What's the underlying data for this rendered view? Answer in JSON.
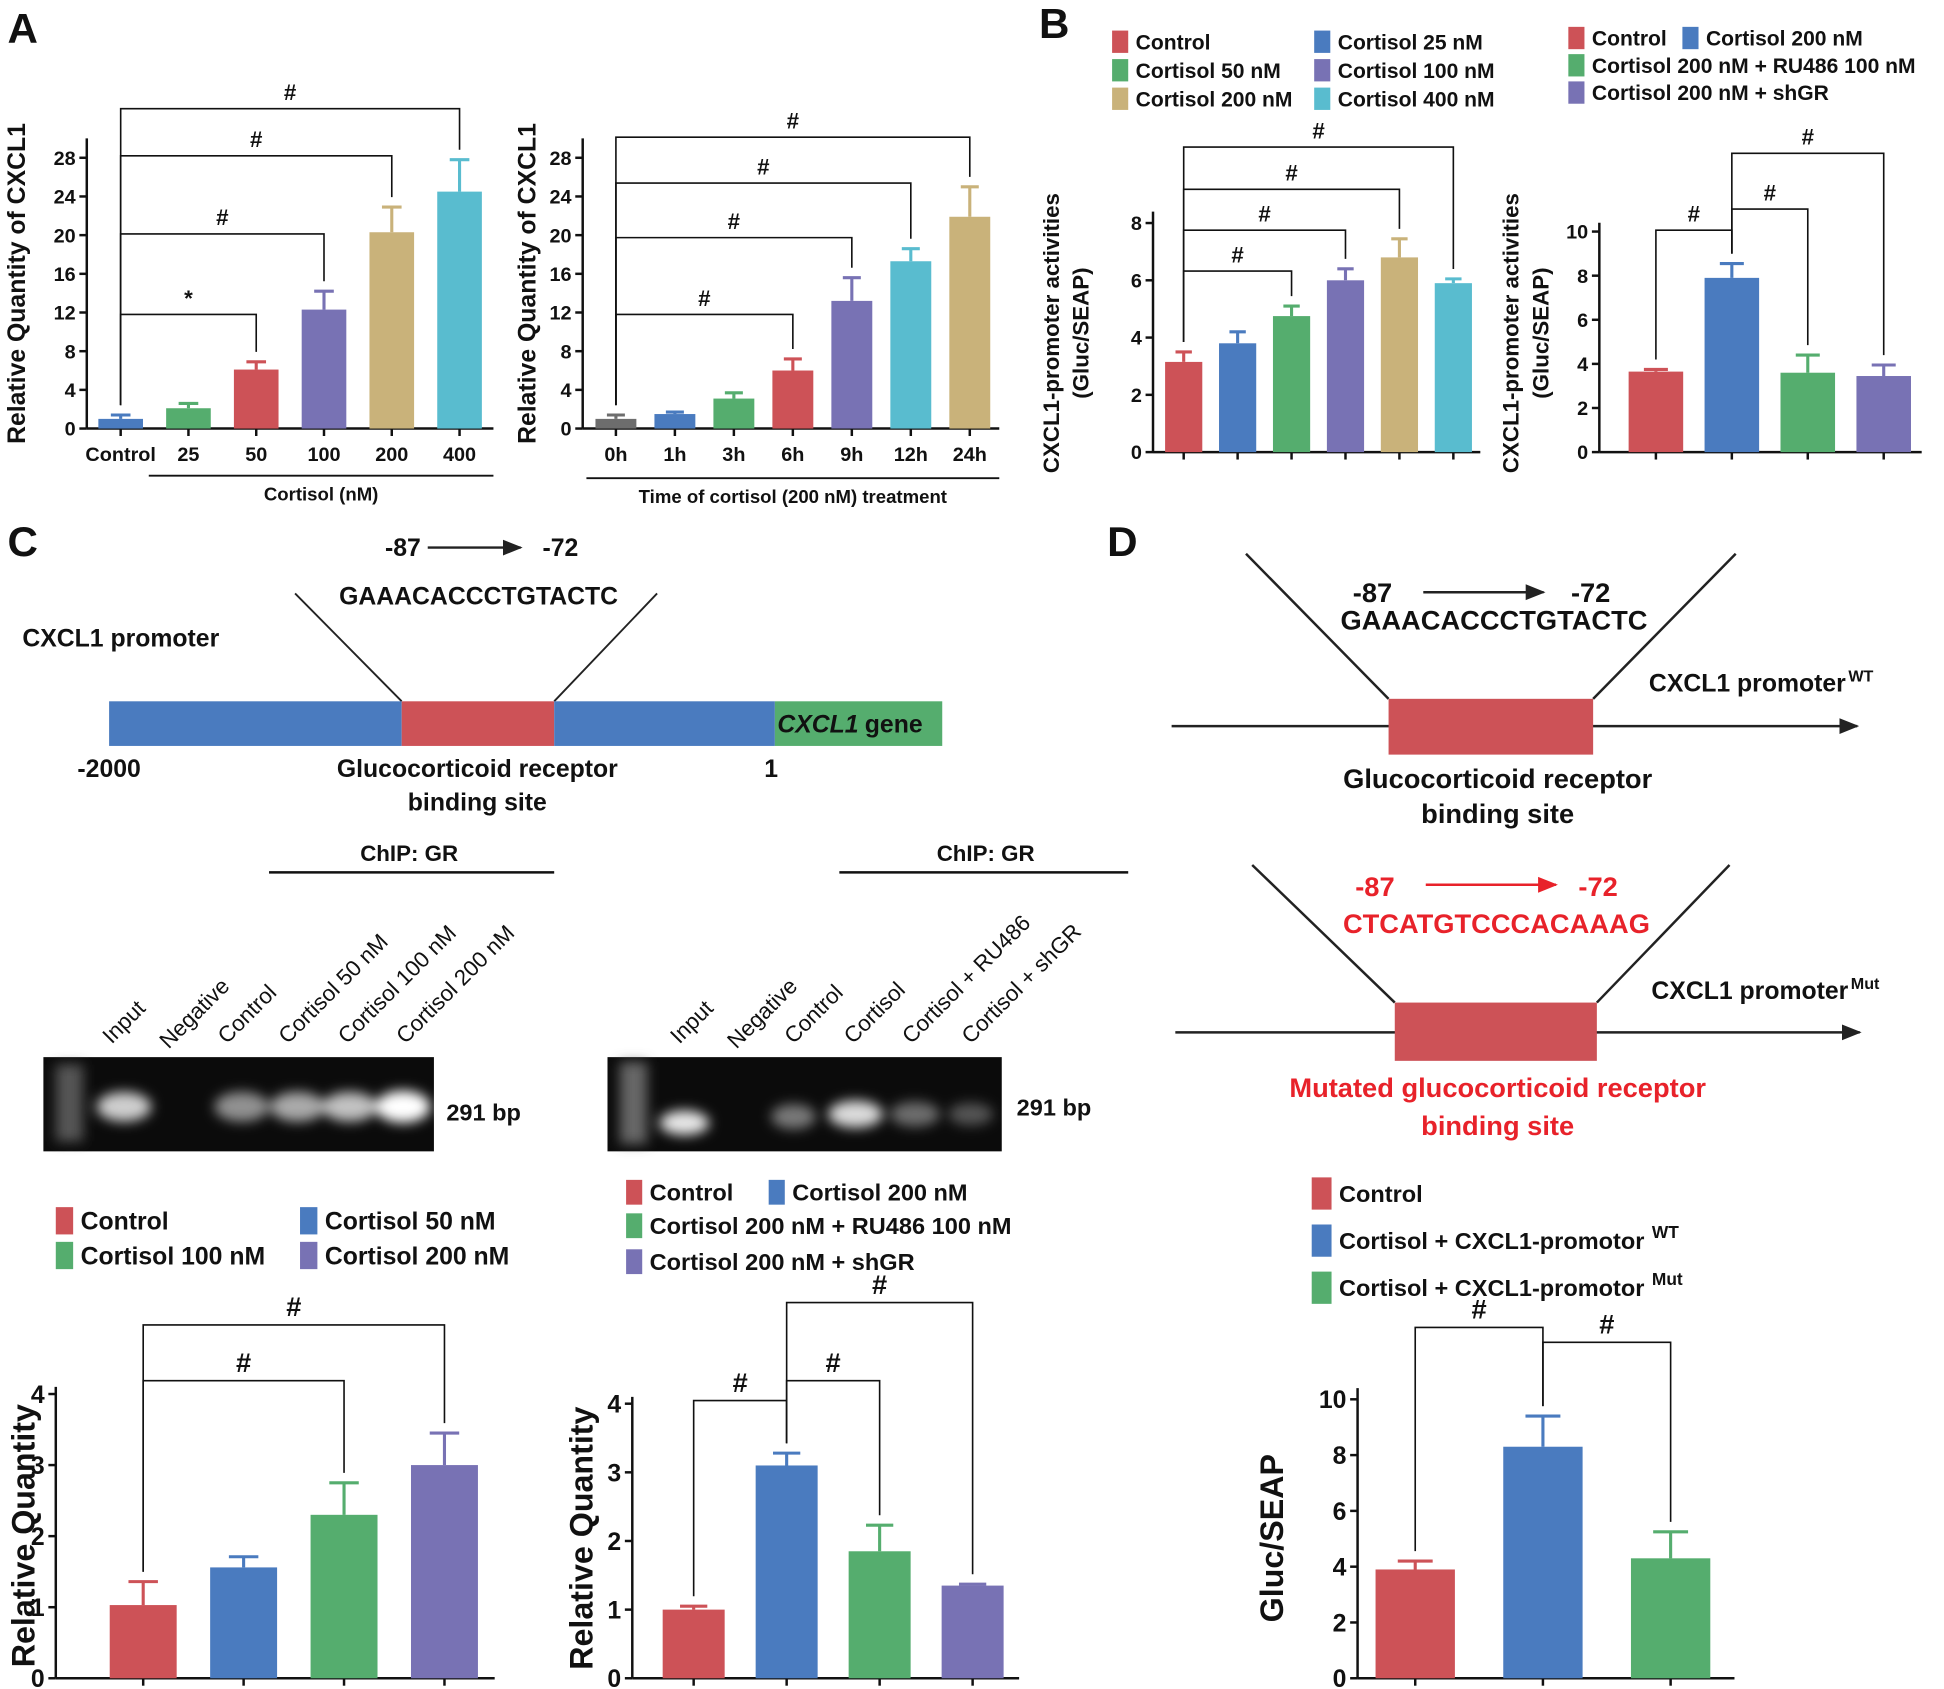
{
  "panels": {
    "labels": [
      "A",
      "B",
      "C",
      "D"
    ]
  },
  "chart_data": [
    {
      "type": "bar",
      "ylabel": "Relative Quantity of CXCL1",
      "xlabel": "Cortisol (nM)",
      "categories": [
        "Control",
        "25",
        "50",
        "100",
        "200",
        "400"
      ],
      "values": [
        1.0,
        2.1,
        6.1,
        12.3,
        20.3,
        24.5
      ],
      "errors": [
        0.4,
        0.5,
        0.8,
        1.9,
        2.6,
        3.3
      ],
      "colors": [
        "#4a7bbf",
        "#55ad6e",
        "#cd5257",
        "#7872b4",
        "#c9b27a",
        "#59bccf"
      ],
      "ylim": [
        0,
        30
      ],
      "yticks": [
        0,
        4,
        8,
        12,
        16,
        20,
        24,
        28
      ],
      "significance": [
        {
          "from": 0,
          "to": 2,
          "label": "*"
        },
        {
          "from": 0,
          "to": 3,
          "label": "#"
        },
        {
          "from": 0,
          "to": 4,
          "label": "#"
        },
        {
          "from": 0,
          "to": 5,
          "label": "#"
        }
      ]
    },
    {
      "type": "bar",
      "ylabel": "Relative Quantity of CXCL1",
      "xlabel": "Time of cortisol (200 nM) treatment",
      "categories": [
        "0h",
        "1h",
        "3h",
        "6h",
        "9h",
        "12h",
        "24h"
      ],
      "values": [
        1.0,
        1.5,
        3.1,
        6.0,
        13.2,
        17.3,
        21.9
      ],
      "errors": [
        0.4,
        0.2,
        0.6,
        1.2,
        2.4,
        1.3,
        3.1
      ],
      "colors": [
        "#6d6d6d",
        "#4a7bbf",
        "#55ad6e",
        "#cd5257",
        "#7872b4",
        "#59bccf",
        "#c9b27a"
      ],
      "ylim": [
        0,
        30
      ],
      "yticks": [
        0,
        4,
        8,
        12,
        16,
        20,
        24,
        28
      ],
      "significance": [
        {
          "from": 0,
          "to": 3,
          "label": "#"
        },
        {
          "from": 0,
          "to": 4,
          "label": "#"
        },
        {
          "from": 0,
          "to": 5,
          "label": "#"
        },
        {
          "from": 0,
          "to": 6,
          "label": "#"
        }
      ]
    },
    {
      "type": "bar",
      "ylabel": [
        "CXCL1-promoter activities",
        "(Gluc/SEAP)"
      ],
      "series": [
        {
          "name": "Control",
          "color": "#cd5257",
          "values": [
            3.15
          ],
          "errors": [
            0.35
          ]
        },
        {
          "name": "Cortisol 25 nM",
          "color": "#4a7bbf",
          "values": [
            3.8
          ],
          "errors": [
            0.4
          ]
        },
        {
          "name": "Cortisol 50 nM",
          "color": "#55ad6e",
          "values": [
            4.75
          ],
          "errors": [
            0.35
          ]
        },
        {
          "name": "Cortisol 100 nM",
          "color": "#7872b4",
          "values": [
            6.0
          ],
          "errors": [
            0.4
          ]
        },
        {
          "name": "Cortisol 200 nM",
          "color": "#c9b27a",
          "values": [
            6.8
          ],
          "errors": [
            0.65
          ]
        },
        {
          "name": "Cortisol 400 nM",
          "color": "#59bccf",
          "values": [
            5.9
          ],
          "errors": [
            0.15
          ]
        }
      ],
      "ylim": [
        0,
        8.4
      ],
      "yticks": [
        0,
        2,
        4,
        6,
        8
      ],
      "significance": [
        {
          "from": 0,
          "to": 2,
          "label": "#"
        },
        {
          "from": 0,
          "to": 3,
          "label": "#"
        },
        {
          "from": 0,
          "to": 4,
          "label": "#"
        },
        {
          "from": 0,
          "to": 5,
          "label": "#"
        }
      ]
    },
    {
      "type": "bar",
      "ylabel": [
        "CXCL1-promoter activities",
        "(Gluc/SEAP)"
      ],
      "series": [
        {
          "name": "Control",
          "color": "#cd5257",
          "values": [
            3.65
          ],
          "errors": [
            0.1
          ]
        },
        {
          "name": "Cortisol 200 nM",
          "color": "#4a7bbf",
          "values": [
            7.9
          ],
          "errors": [
            0.65
          ]
        },
        {
          "name": "Cortisol 200 nM + RU486 100 nM",
          "color": "#55ad6e",
          "values": [
            3.6
          ],
          "errors": [
            0.8
          ]
        },
        {
          "name": "Cortisol 200 nM + shGR",
          "color": "#7872b4",
          "values": [
            3.45
          ],
          "errors": [
            0.5
          ]
        }
      ],
      "ylim": [
        0,
        10.4
      ],
      "yticks": [
        0,
        2,
        4,
        6,
        8,
        10
      ],
      "significance": [
        {
          "from": 0,
          "to": 1,
          "label": "#"
        },
        {
          "from": 1,
          "to": 2,
          "label": "#"
        },
        {
          "from": 1,
          "to": 3,
          "label": "#"
        }
      ]
    },
    {
      "type": "bar",
      "ylabel": "Relative Quantity",
      "series": [
        {
          "name": "Control",
          "color": "#cd5257",
          "values": [
            1.03
          ],
          "errors": [
            0.33
          ]
        },
        {
          "name": "Cortisol 50 nM",
          "color": "#4a7bbf",
          "values": [
            1.56
          ],
          "errors": [
            0.15
          ]
        },
        {
          "name": "Cortisol 100 nM",
          "color": "#55ad6e",
          "values": [
            2.3
          ],
          "errors": [
            0.45
          ]
        },
        {
          "name": "Cortisol 200 nM",
          "color": "#7872b4",
          "values": [
            3.0
          ],
          "errors": [
            0.45
          ]
        }
      ],
      "ylim": [
        0,
        4.1
      ],
      "yticks": [
        0,
        1,
        2,
        3,
        4
      ],
      "significance": [
        {
          "from": 0,
          "to": 2,
          "label": "#"
        },
        {
          "from": 0,
          "to": 3,
          "label": "#"
        }
      ]
    },
    {
      "type": "bar",
      "ylabel": "Relative Quantity",
      "series": [
        {
          "name": "Control",
          "color": "#cd5257",
          "values": [
            1.0
          ],
          "errors": [
            0.05
          ]
        },
        {
          "name": "Cortisol 200 nM",
          "color": "#4a7bbf",
          "values": [
            3.1
          ],
          "errors": [
            0.18
          ]
        },
        {
          "name": "Cortisol 200 nM + RU486 100 nM",
          "color": "#55ad6e",
          "values": [
            1.85
          ],
          "errors": [
            0.38
          ]
        },
        {
          "name": "Cortisol 200 nM + shGR",
          "color": "#7872b4",
          "values": [
            1.35
          ],
          "errors": [
            0.02
          ]
        }
      ],
      "ylim": [
        0,
        4.1
      ],
      "yticks": [
        0,
        1,
        2,
        3,
        4
      ],
      "significance": [
        {
          "from": 0,
          "to": 1,
          "label": "#"
        },
        {
          "from": 1,
          "to": 2,
          "label": "#"
        },
        {
          "from": 1,
          "to": 3,
          "label": "#"
        }
      ]
    },
    {
      "type": "bar",
      "ylabel": "Gluc/SEAP",
      "series": [
        {
          "name": "Control",
          "color": "#cd5257",
          "values": [
            3.9
          ],
          "errors": [
            0.3
          ]
        },
        {
          "name": "Cortisol + CXCL1-promotor",
          "superscript": "WT",
          "color": "#4a7bbf",
          "values": [
            8.3
          ],
          "errors": [
            1.1
          ]
        },
        {
          "name": "Cortisol + CXCL1-promotor",
          "superscript": "Mut",
          "color": "#55ad6e",
          "values": [
            4.3
          ],
          "errors": [
            0.95
          ]
        }
      ],
      "ylim": [
        0,
        10.4
      ],
      "yticks": [
        0,
        2,
        4,
        6,
        8,
        10
      ],
      "significance": [
        {
          "from": 0,
          "to": 1,
          "label": "#"
        },
        {
          "from": 1,
          "to": 2,
          "label": "#"
        }
      ]
    }
  ],
  "diagram_c": {
    "start": "-87",
    "end": "-72",
    "sequence": "GAAACACCCTGTACTC",
    "promoter": "CXCL1 promoter",
    "gene_name": "CXCL1",
    "gene_word": "gene",
    "left_pos": "-2000",
    "site": [
      "Glucocorticoid receptor",
      "binding site"
    ],
    "right_pos": "1"
  },
  "gels": [
    {
      "title": "ChIP: GR",
      "lanes": [
        "Input",
        "Negative",
        "Control",
        "Cortisol 50 nM",
        "Cortisol 100 nM",
        "Cortisol 200 nM"
      ],
      "size": "291 bp"
    },
    {
      "title": "ChIP: GR",
      "lanes": [
        "Input",
        "Negative",
        "Control",
        "Cortisol",
        "Cortisol + RU486",
        "Cortisol + shGR"
      ],
      "size": "291 bp"
    }
  ],
  "diagram_d": {
    "wt": {
      "start": "-87",
      "end": "-72",
      "sequence": "GAAACACCCTGTACTC",
      "promoter": "CXCL1 promoter",
      "superscript": "WT",
      "site": [
        "Glucocorticoid receptor",
        "binding site"
      ]
    },
    "mut": {
      "start": "-87",
      "end": "-72",
      "sequence": "CTCATGTCCCACAAAG",
      "promoter": "CXCL1 promoter",
      "superscript": "Mut",
      "site": [
        "Mutated glucocorticoid receptor",
        "binding site"
      ]
    }
  }
}
